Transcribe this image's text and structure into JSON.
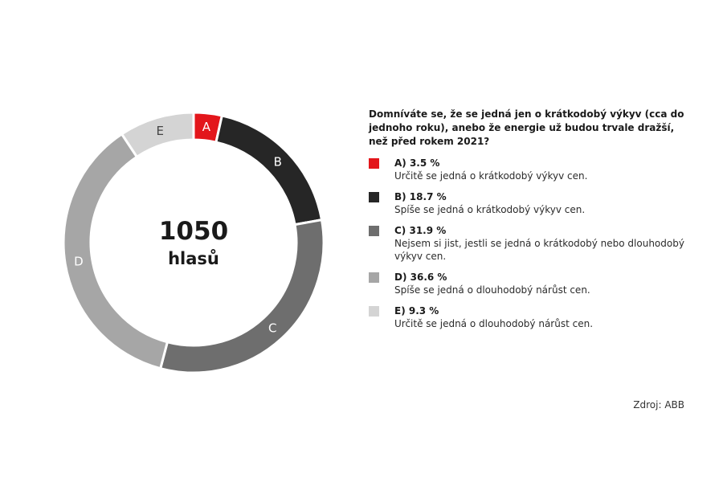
{
  "chart_data": {
    "type": "pie",
    "variant": "donut",
    "center": {
      "total": "1050",
      "unit": "hlasů"
    },
    "question": "Domníváte se, že se jedná jen o krátkodobý výkyv (cca do jednoho roku), anebo že energie už budou trvale dražší, než před rokem 2021?",
    "legend_placement": "right",
    "segments": [
      {
        "key": "A",
        "value": 3.5,
        "value_label": "A) 3.5 %",
        "description": "Určitě se jedná o krátkodobý výkyv cen.",
        "color": "#e3161b",
        "text_color": "#ffffff"
      },
      {
        "key": "B",
        "value": 18.7,
        "value_label": "B) 18.7 %",
        "description": "Spíše se jedná o krátkodobý výkyv cen.",
        "color": "#262626",
        "text_color": "#ffffff"
      },
      {
        "key": "C",
        "value": 31.9,
        "value_label": "C) 31.9 %",
        "description": "Nejsem si jist, jestli se jedná o krátkodobý nebo dlouhodobý výkyv cen.",
        "color": "#6e6e6e",
        "text_color": "#ffffff"
      },
      {
        "key": "D",
        "value": 36.6,
        "value_label": "D) 36.6 %",
        "description": "Spíše se jedná o dlouhodobý nárůst cen.",
        "color": "#a6a6a6",
        "text_color": "#ffffff"
      },
      {
        "key": "E",
        "value": 9.3,
        "value_label": "E) 9.3 %",
        "description": "Určitě se jedná o dlouhodobý nárůst cen.",
        "color": "#d4d4d4",
        "text_color": "#444444"
      }
    ]
  },
  "source": "Zdroj: ABB"
}
